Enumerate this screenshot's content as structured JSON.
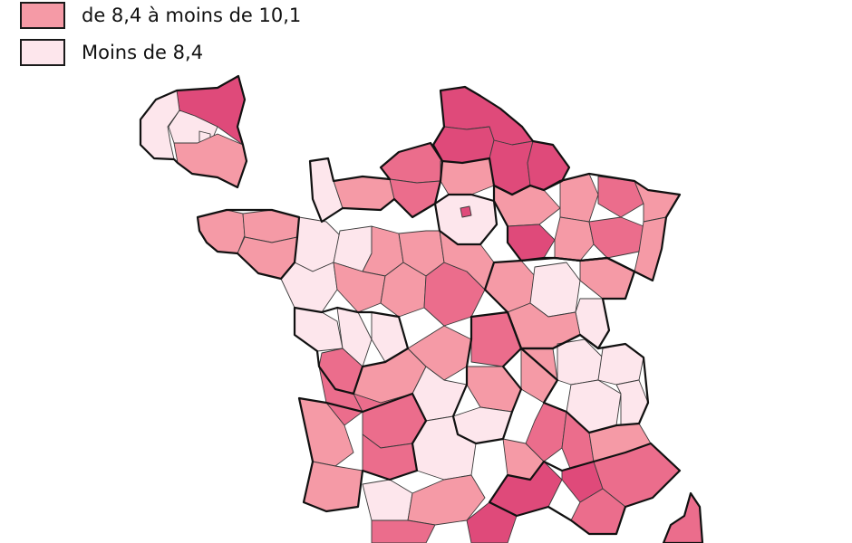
{
  "legend": {
    "items": [
      {
        "label": "de 8,4 à moins de 10,1",
        "color": "#f59aa6"
      },
      {
        "label": "Moins de 8,4",
        "color": "#fde6ec"
      }
    ]
  },
  "palette": {
    "dark": "#df4a7a",
    "medium": "#eb6d8c",
    "light": "#f59aa6",
    "pale": "#fde6ec",
    "border": "#1a1a1a"
  },
  "map": {
    "subject": "France by département",
    "inset": "Île-de-France (Paris and inner suburbs)"
  }
}
